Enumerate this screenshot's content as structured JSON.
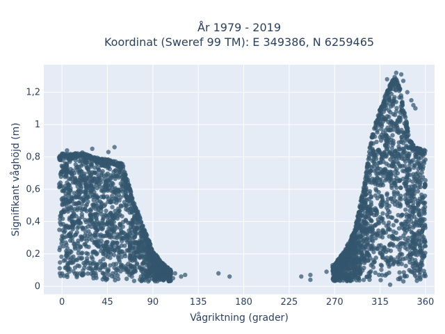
{
  "chart_data": {
    "type": "scatter",
    "title_line1": "År 1979 - 2019",
    "title_line2": "Koordinat (Sweref 99 TM): E 349386, N 6259465",
    "xlabel": "Vågriktning (grader)",
    "ylabel": "Signifikant våghöjd (m)",
    "xlim": [
      -18,
      369
    ],
    "ylim": [
      -0.05,
      1.37
    ],
    "x_ticks": [
      0,
      45,
      90,
      135,
      180,
      225,
      270,
      315,
      360
    ],
    "x_tick_labels": [
      "0",
      "45",
      "90",
      "135",
      "180",
      "225",
      "270",
      "315",
      "360"
    ],
    "y_ticks": [
      0,
      0.2,
      0.4,
      0.6,
      0.8,
      1.0,
      1.2
    ],
    "y_tick_labels": [
      "0",
      "0,2",
      "0,4",
      "0,6",
      "0,8",
      "1",
      "1,2"
    ],
    "grid": true,
    "marker_color": "#33566e",
    "plot_background": "#e5ecf6",
    "clusters": [
      {
        "x_range": [
          -3,
          108
        ],
        "y_min": 0.03,
        "upper_envelope": [
          [
            -3,
            0.8
          ],
          [
            0,
            0.82
          ],
          [
            10,
            0.82
          ],
          [
            20,
            0.83
          ],
          [
            30,
            0.8
          ],
          [
            40,
            0.79
          ],
          [
            50,
            0.78
          ],
          [
            60,
            0.76
          ],
          [
            70,
            0.55
          ],
          [
            80,
            0.38
          ],
          [
            90,
            0.22
          ],
          [
            100,
            0.14
          ],
          [
            108,
            0.1
          ]
        ]
      },
      {
        "x_range": [
          268,
          360
        ],
        "y_min": 0.03,
        "upper_envelope": [
          [
            268,
            0.12
          ],
          [
            280,
            0.22
          ],
          [
            290,
            0.35
          ],
          [
            300,
            0.65
          ],
          [
            305,
            0.88
          ],
          [
            310,
            1.0
          ],
          [
            318,
            1.15
          ],
          [
            325,
            1.25
          ],
          [
            330,
            1.3
          ],
          [
            335,
            1.22
          ],
          [
            340,
            1.05
          ],
          [
            345,
            0.9
          ],
          [
            350,
            0.86
          ],
          [
            360,
            0.84
          ]
        ]
      }
    ],
    "isolated_points": [
      [
        52,
        0.86
      ],
      [
        46,
        0.83
      ],
      [
        30,
        0.85
      ],
      [
        5,
        0.84
      ],
      [
        98,
        0.09
      ],
      [
        105,
        0.08
      ],
      [
        112,
        0.08
      ],
      [
        118,
        0.06
      ],
      [
        122,
        0.07
      ],
      [
        110,
        0.05
      ],
      [
        155,
        0.08
      ],
      [
        166,
        0.06
      ],
      [
        237,
        0.06
      ],
      [
        246,
        0.07
      ],
      [
        246,
        0.04
      ],
      [
        262,
        0.09
      ],
      [
        270,
        0.06
      ],
      [
        268,
        0.13
      ],
      [
        331,
        1.32
      ],
      [
        336,
        1.31
      ],
      [
        322,
        1.28
      ],
      [
        338,
        1.27
      ],
      [
        342,
        1.2
      ],
      [
        346,
        1.15
      ],
      [
        348,
        1.12
      ],
      [
        350,
        1.1
      ],
      [
        325,
        0.01
      ]
    ]
  }
}
